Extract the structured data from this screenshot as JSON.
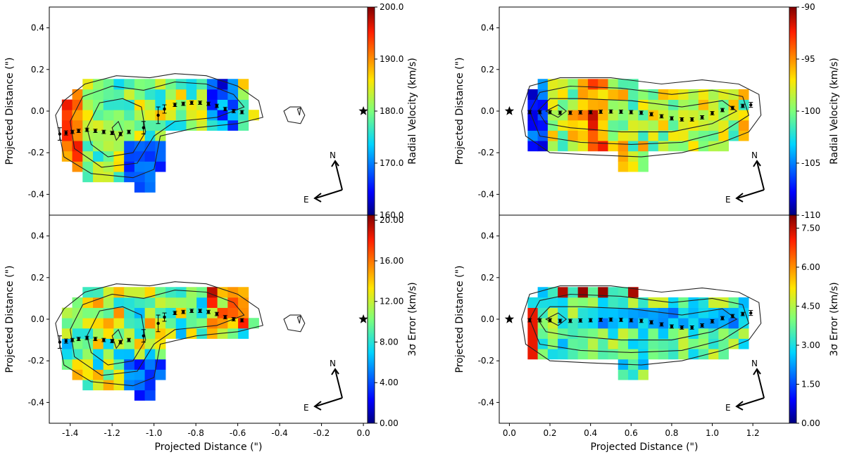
{
  "chart_data": [
    {
      "type": "heatmap",
      "panel": "top-left",
      "xlabel": "",
      "ylabel": "Projected Distance (\")",
      "xlim": [
        -1.5,
        0.02
      ],
      "ylim": [
        -0.5,
        0.5
      ],
      "yticks": [
        "0.4",
        "0.2",
        "0.0",
        "-0.2",
        "-0.4"
      ],
      "colorbar": {
        "label": "Radial Velocity (km/s)",
        "min": 160,
        "max": 200,
        "ticks": [
          "160.0",
          "170.0",
          "180.0",
          "190.0",
          "200.0"
        ]
      },
      "compass": {
        "north": "N",
        "east": "E"
      },
      "star": {
        "x": 0.0,
        "y": 0.0
      },
      "trace": [
        {
          "x": -1.45,
          "y": -0.11,
          "err": 0.03
        },
        {
          "x": -1.42,
          "y": -0.105,
          "err": 0.01
        },
        {
          "x": -1.39,
          "y": -0.1,
          "err": 0.008
        },
        {
          "x": -1.36,
          "y": -0.095,
          "err": 0.008
        },
        {
          "x": -1.32,
          "y": -0.09,
          "err": 0.008
        },
        {
          "x": -1.28,
          "y": -0.095,
          "err": 0.008
        },
        {
          "x": -1.24,
          "y": -0.1,
          "err": 0.008
        },
        {
          "x": -1.2,
          "y": -0.105,
          "err": 0.008
        },
        {
          "x": -1.16,
          "y": -0.11,
          "err": 0.008
        },
        {
          "x": -1.12,
          "y": -0.1,
          "err": 0.008
        },
        {
          "x": -1.05,
          "y": -0.08,
          "err": 0.03
        },
        {
          "x": -0.98,
          "y": -0.02,
          "err": 0.04
        },
        {
          "x": -0.95,
          "y": 0.01,
          "err": 0.02
        },
        {
          "x": -0.9,
          "y": 0.03,
          "err": 0.008
        },
        {
          "x": -0.86,
          "y": 0.035,
          "err": 0.008
        },
        {
          "x": -0.82,
          "y": 0.04,
          "err": 0.008
        },
        {
          "x": -0.78,
          "y": 0.04,
          "err": 0.008
        },
        {
          "x": -0.74,
          "y": 0.035,
          "err": 0.008
        },
        {
          "x": -0.7,
          "y": 0.025,
          "err": 0.008
        },
        {
          "x": -0.66,
          "y": 0.01,
          "err": 0.008
        },
        {
          "x": -0.62,
          "y": 0.0,
          "err": 0.008
        },
        {
          "x": -0.58,
          "y": -0.005,
          "err": 0.008
        }
      ]
    },
    {
      "type": "heatmap",
      "panel": "bottom-left",
      "xlabel": "Projected Distance (\")",
      "ylabel": "Projected Distance (\")",
      "xlim": [
        -1.5,
        0.02
      ],
      "ylim": [
        -0.5,
        0.5
      ],
      "xticks": [
        "-1.4",
        "-1.2",
        "-1.0",
        "-0.8",
        "-0.6",
        "-0.4",
        "-0.2",
        "0.0"
      ],
      "yticks": [
        "0.4",
        "0.2",
        "0.0",
        "-0.2",
        "-0.4"
      ],
      "colorbar": {
        "label": "3σ Error (km/s)",
        "min": 0,
        "max": 20.5,
        "ticks": [
          "0.00",
          "4.00",
          "8.00",
          "12.00",
          "16.00",
          "20.00"
        ]
      },
      "compass": {
        "north": "N",
        "east": "E"
      },
      "star": {
        "x": 0.0,
        "y": 0.0
      }
    },
    {
      "type": "heatmap",
      "panel": "top-right",
      "xlabel": "",
      "ylabel": "Projected Distance (\")",
      "xlim": [
        -0.05,
        1.38
      ],
      "ylim": [
        -0.5,
        0.5
      ],
      "yticks": [
        "0.4",
        "0.2",
        "0.0",
        "-0.2",
        "-0.4"
      ],
      "colorbar": {
        "label": "Radial Velocity (km/s)",
        "min": -110,
        "max": -90,
        "ticks": [
          "-110",
          "-105",
          "-100",
          "-95",
          "-90"
        ]
      },
      "compass": {
        "north": "N",
        "east": "E"
      },
      "star": {
        "x": 0.0,
        "y": 0.0
      },
      "trace": [
        {
          "x": 0.1,
          "y": -0.005,
          "err": 0.008
        },
        {
          "x": 0.15,
          "y": -0.005,
          "err": 0.008
        },
        {
          "x": 0.2,
          "y": -0.005,
          "err": 0.008
        },
        {
          "x": 0.25,
          "y": -0.008,
          "err": 0.008
        },
        {
          "x": 0.3,
          "y": -0.008,
          "err": 0.008
        },
        {
          "x": 0.35,
          "y": -0.006,
          "err": 0.008
        },
        {
          "x": 0.4,
          "y": -0.005,
          "err": 0.008
        },
        {
          "x": 0.45,
          "y": -0.003,
          "err": 0.008
        },
        {
          "x": 0.5,
          "y": -0.002,
          "err": 0.008
        },
        {
          "x": 0.55,
          "y": -0.003,
          "err": 0.008
        },
        {
          "x": 0.6,
          "y": -0.005,
          "err": 0.008
        },
        {
          "x": 0.65,
          "y": -0.008,
          "err": 0.008
        },
        {
          "x": 0.7,
          "y": -0.015,
          "err": 0.008
        },
        {
          "x": 0.75,
          "y": -0.025,
          "err": 0.008
        },
        {
          "x": 0.8,
          "y": -0.035,
          "err": 0.008
        },
        {
          "x": 0.85,
          "y": -0.04,
          "err": 0.008
        },
        {
          "x": 0.9,
          "y": -0.04,
          "err": 0.008
        },
        {
          "x": 0.95,
          "y": -0.03,
          "err": 0.008
        },
        {
          "x": 1.0,
          "y": -0.01,
          "err": 0.008
        },
        {
          "x": 1.05,
          "y": 0.005,
          "err": 0.008
        },
        {
          "x": 1.1,
          "y": 0.015,
          "err": 0.008
        },
        {
          "x": 1.15,
          "y": 0.025,
          "err": 0.008
        },
        {
          "x": 1.19,
          "y": 0.03,
          "err": 0.012
        }
      ]
    },
    {
      "type": "heatmap",
      "panel": "bottom-right",
      "xlabel": "Projected Distance (\")",
      "ylabel": "Projected Distance (\")",
      "xlim": [
        -0.05,
        1.38
      ],
      "ylim": [
        -0.5,
        0.5
      ],
      "xticks": [
        "0.0",
        "0.2",
        "0.4",
        "0.6",
        "0.8",
        "1.0",
        "1.2"
      ],
      "yticks": [
        "0.4",
        "0.2",
        "0.0",
        "-0.2",
        "-0.4"
      ],
      "colorbar": {
        "label": "3σ Error (km/s)",
        "min": 0,
        "max": 8.0,
        "ticks": [
          "0.00",
          "1.50",
          "3.00",
          "4.50",
          "6.00",
          "7.50"
        ]
      },
      "compass": {
        "north": "N",
        "east": "E"
      },
      "star": {
        "x": 0.0,
        "y": 0.0
      }
    }
  ]
}
